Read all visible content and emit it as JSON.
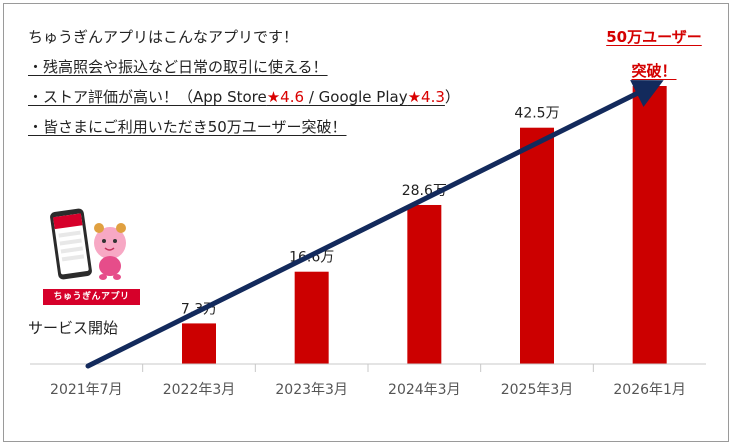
{
  "intro": {
    "line1": "ちゅうぎんアプリはこんなアプリです！",
    "line2": "・残高照会や振込など日常の取引に使える！",
    "line3_prefix": "・ストア評価が高い！（App Store",
    "line3_star1": "★4.6",
    "line3_mid": " / Google Play",
    "line3_star2": "★4.3",
    "line3_suffix": "）",
    "line4": "・皆さまにご利用いただき50万ユーザー突破！"
  },
  "callout": {
    "line1": "50万ユーザー",
    "line2": "突破！"
  },
  "app_badge": "ちゅうぎんアプリ",
  "start_label": "サービス開始",
  "colors": {
    "bar": "#cc0000",
    "arrow": "#132a5c",
    "callout": "#d40000",
    "axis": "#c8c8c8"
  },
  "icons": [
    "smartphone-icon",
    "mascot-icon"
  ],
  "chart_data": {
    "type": "bar",
    "title": "",
    "xlabel": "",
    "ylabel": "",
    "categories": [
      "2021年7月",
      "2022年3月",
      "2023年3月",
      "2024年3月",
      "2025年3月",
      "2026年1月"
    ],
    "values": [
      0,
      7.3,
      16.6,
      28.6,
      42.5,
      50
    ],
    "value_labels": [
      "",
      "7.3万",
      "16.6万",
      "28.6万",
      "42.5万",
      ""
    ],
    "ylim": [
      0,
      52
    ],
    "grid": false,
    "trend_arrow": "up"
  }
}
